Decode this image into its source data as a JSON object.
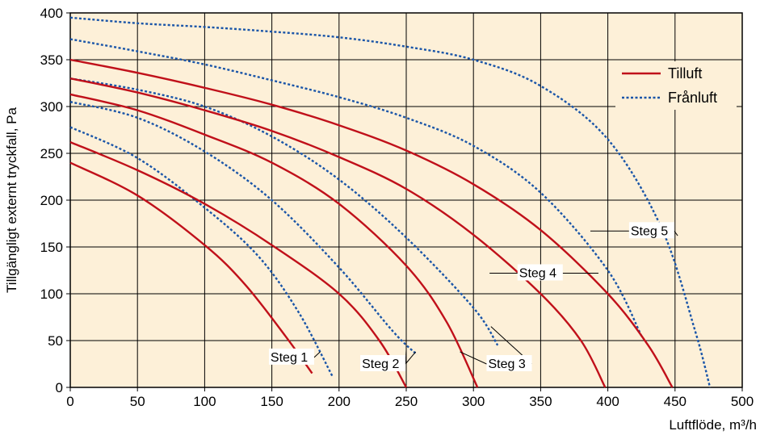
{
  "chart_data": {
    "type": "line",
    "xlabel": "Luftflöde, m³/h",
    "ylabel": "Tillgängligt externt tryckfall, Pa",
    "xlim": [
      0,
      500
    ],
    "ylim": [
      0,
      400
    ],
    "xticks": [
      0,
      50,
      100,
      150,
      200,
      250,
      300,
      350,
      400,
      450,
      500
    ],
    "yticks": [
      0,
      50,
      100,
      150,
      200,
      250,
      300,
      350,
      400
    ],
    "grid": true,
    "legend_position": "top-right",
    "colors": {
      "Tilluft": "#c0101a",
      "Frånluft": "#1a55a8",
      "background": "#fdf0d8"
    },
    "legend": [
      {
        "label": "Tilluft",
        "style": "solid"
      },
      {
        "label": "Frånluft",
        "style": "dotted"
      }
    ],
    "series": [
      {
        "name": "Tilluft",
        "step": "Steg 1",
        "points": [
          [
            0,
            240
          ],
          [
            50,
            205
          ],
          [
            100,
            152
          ],
          [
            130,
            110
          ],
          [
            160,
            55
          ],
          [
            180,
            15
          ]
        ]
      },
      {
        "name": "Frånluft",
        "step": "Steg 1",
        "points": [
          [
            0,
            278
          ],
          [
            50,
            245
          ],
          [
            100,
            192
          ],
          [
            140,
            140
          ],
          [
            170,
            80
          ],
          [
            195,
            12
          ]
        ]
      },
      {
        "name": "Tilluft",
        "step": "Steg 2",
        "points": [
          [
            0,
            262
          ],
          [
            50,
            232
          ],
          [
            100,
            196
          ],
          [
            150,
            152
          ],
          [
            200,
            100
          ],
          [
            230,
            50
          ],
          [
            250,
            0
          ]
        ]
      },
      {
        "name": "Frånluft",
        "step": "Steg 2",
        "points": [
          [
            0,
            305
          ],
          [
            50,
            288
          ],
          [
            100,
            252
          ],
          [
            150,
            200
          ],
          [
            200,
            128
          ],
          [
            240,
            60
          ],
          [
            258,
            35
          ]
        ]
      },
      {
        "name": "Tilluft",
        "step": "Steg 3",
        "points": [
          [
            0,
            313
          ],
          [
            50,
            296
          ],
          [
            100,
            270
          ],
          [
            150,
            240
          ],
          [
            200,
            196
          ],
          [
            250,
            130
          ],
          [
            280,
            70
          ],
          [
            303,
            0
          ]
        ]
      },
      {
        "name": "Frånluft",
        "step": "Steg 3",
        "points": [
          [
            0,
            330
          ],
          [
            50,
            318
          ],
          [
            100,
            300
          ],
          [
            150,
            268
          ],
          [
            200,
            222
          ],
          [
            250,
            160
          ],
          [
            300,
            85
          ],
          [
            318,
            45
          ]
        ]
      },
      {
        "name": "Tilluft",
        "step": "Steg 4",
        "points": [
          [
            0,
            330
          ],
          [
            50,
            315
          ],
          [
            100,
            296
          ],
          [
            150,
            274
          ],
          [
            200,
            246
          ],
          [
            250,
            212
          ],
          [
            300,
            163
          ],
          [
            350,
            100
          ],
          [
            380,
            50
          ],
          [
            398,
            0
          ]
        ]
      },
      {
        "name": "Frånluft",
        "step": "Steg 4",
        "points": [
          [
            0,
            372
          ],
          [
            50,
            359
          ],
          [
            100,
            345
          ],
          [
            150,
            328
          ],
          [
            200,
            310
          ],
          [
            250,
            288
          ],
          [
            300,
            258
          ],
          [
            350,
            208
          ],
          [
            400,
            125
          ],
          [
            425,
            55
          ]
        ]
      },
      {
        "name": "Tilluft",
        "step": "Steg 5",
        "points": [
          [
            0,
            350
          ],
          [
            50,
            336
          ],
          [
            100,
            320
          ],
          [
            150,
            302
          ],
          [
            200,
            280
          ],
          [
            250,
            253
          ],
          [
            300,
            217
          ],
          [
            350,
            168
          ],
          [
            400,
            100
          ],
          [
            430,
            45
          ],
          [
            448,
            0
          ]
        ]
      },
      {
        "name": "Frånluft",
        "step": "Steg 5",
        "points": [
          [
            0,
            395
          ],
          [
            50,
            389
          ],
          [
            100,
            385
          ],
          [
            150,
            380
          ],
          [
            200,
            374
          ],
          [
            250,
            364
          ],
          [
            300,
            350
          ],
          [
            350,
            322
          ],
          [
            400,
            265
          ],
          [
            440,
            170
          ],
          [
            465,
            60
          ],
          [
            476,
            0
          ]
        ]
      }
    ],
    "annotations": [
      {
        "text": "Steg 1",
        "label_at": [
          149,
          32
        ],
        "targets": [
          [
            176,
            40
          ],
          [
            186,
            38
          ]
        ]
      },
      {
        "text": "Steg 2",
        "label_at": [
          217,
          25
        ],
        "targets": [
          [
            250,
            40
          ],
          [
            257,
            38
          ]
        ]
      },
      {
        "text": "Steg 3",
        "label_at": [
          311,
          25
        ],
        "targets": [
          [
            290,
            38
          ],
          [
            313,
            65
          ]
        ]
      },
      {
        "text": "Steg 4",
        "label_at": [
          334,
          122
        ],
        "targets": [
          [
            312,
            122
          ],
          [
            393,
            122
          ]
        ]
      },
      {
        "text": "Steg 5",
        "label_at": [
          417,
          167
        ],
        "targets": [
          [
            387,
            167
          ],
          [
            452,
            162
          ]
        ]
      }
    ]
  }
}
